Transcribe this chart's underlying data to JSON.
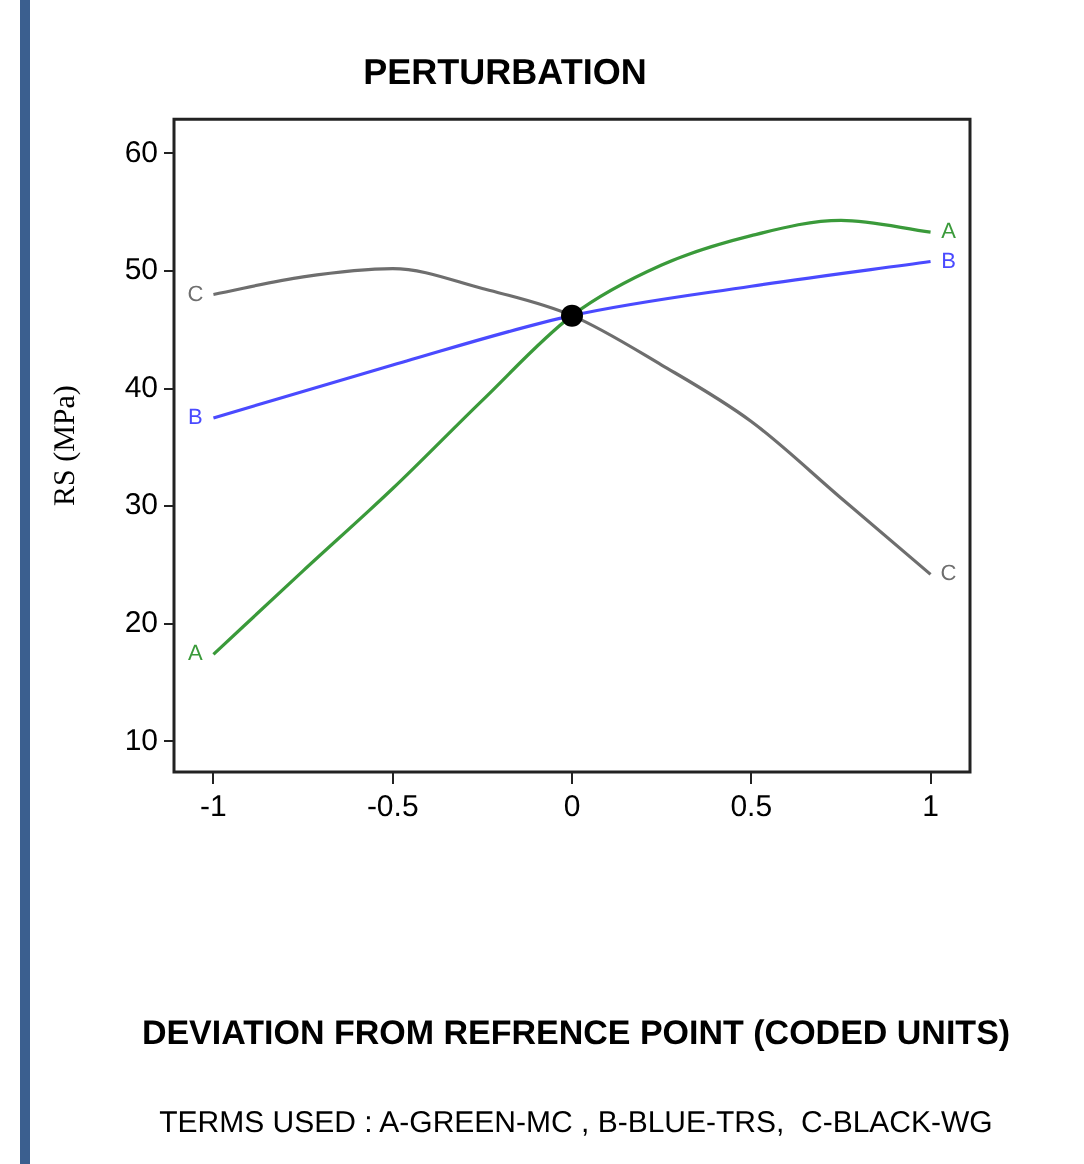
{
  "chart_data": {
    "type": "line",
    "title": "PERTURBATION",
    "ylabel": "RS (MPa)",
    "annotations": [
      "DEVIATION FROM REFRENCE POINT (CODED UNITS)",
      "TERMS USED : A-GREEN-MC , B-BLUE-TRS,  C-BLACK-WG"
    ],
    "xlim": [
      -1.11,
      1.11
    ],
    "xticks": [
      -1,
      -0.5,
      0,
      0.5,
      1
    ],
    "ylim": [
      7.4,
      62.9
    ],
    "yticks": [
      10,
      20,
      30,
      40,
      50,
      60
    ],
    "grid": false,
    "legend": false,
    "marker": "none",
    "line_style": "solid",
    "series": [
      {
        "name": "A",
        "color": "#3a9a3a",
        "x": [
          -1,
          -0.75,
          -0.5,
          -0.25,
          0,
          0.25,
          0.5,
          0.75,
          1
        ],
        "values": [
          17.4,
          24.5,
          31.5,
          39,
          46.2,
          50.5,
          53,
          54.3,
          53.3
        ]
      },
      {
        "name": "B",
        "color": "#4a4aff",
        "x": [
          -1,
          -0.5,
          0,
          0.5,
          1
        ],
        "values": [
          37.5,
          42,
          46.2,
          48.7,
          50.8
        ]
      },
      {
        "name": "C",
        "color": "#6e6e6e",
        "x": [
          -1,
          -0.75,
          -0.5,
          -0.25,
          0,
          0.25,
          0.5,
          0.75,
          1
        ],
        "values": [
          48,
          49.5,
          50.2,
          48.5,
          46.2,
          42,
          37.2,
          30.7,
          24.2
        ]
      },
      {
        "type": "scatter",
        "marker": "circle",
        "color": "#000000",
        "x": [
          0
        ],
        "values": [
          46.2
        ]
      }
    ]
  }
}
